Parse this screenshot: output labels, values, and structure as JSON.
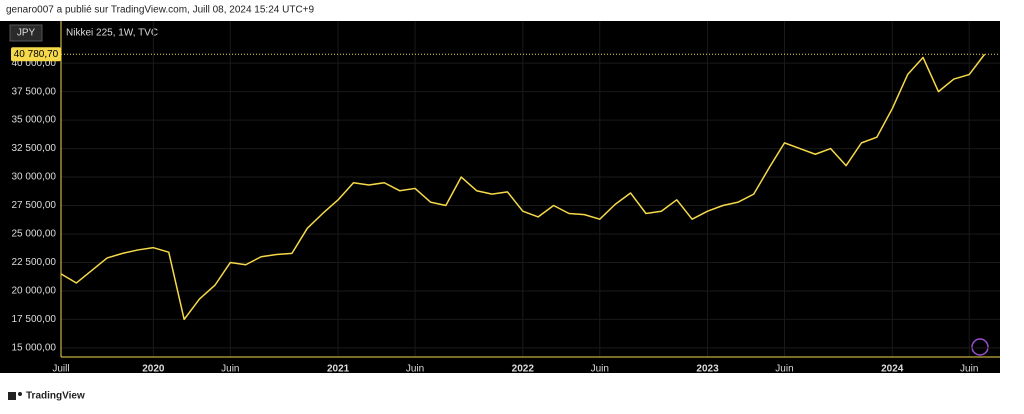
{
  "header": "genaro007 a publié sur TradingView.com, Juill 08, 2024 15:24 UTC+9",
  "footer": "TradingView",
  "chart_data": {
    "type": "line",
    "legend": "Nikkei 225, 1W, TVC",
    "currency": "JPY",
    "x": [
      "2019-07",
      "2019-08",
      "2019-09",
      "2019-10",
      "2019-11",
      "2019-12",
      "2020-01",
      "2020-02",
      "2020-03",
      "2020-04",
      "2020-05",
      "2020-06",
      "2020-07",
      "2020-08",
      "2020-09",
      "2020-10",
      "2020-11",
      "2020-12",
      "2021-01",
      "2021-02",
      "2021-03",
      "2021-04",
      "2021-05",
      "2021-06",
      "2021-07",
      "2021-08",
      "2021-09",
      "2021-10",
      "2021-11",
      "2021-12",
      "2022-01",
      "2022-02",
      "2022-03",
      "2022-04",
      "2022-05",
      "2022-06",
      "2022-07",
      "2022-08",
      "2022-09",
      "2022-10",
      "2022-11",
      "2022-12",
      "2023-01",
      "2023-02",
      "2023-03",
      "2023-04",
      "2023-05",
      "2023-06",
      "2023-07",
      "2023-08",
      "2023-09",
      "2023-10",
      "2023-11",
      "2023-12",
      "2024-01",
      "2024-02",
      "2024-03",
      "2024-04",
      "2024-05",
      "2024-06",
      "2024-07"
    ],
    "series": [
      {
        "name": "Nikkei 225",
        "color": "#f5d94a",
        "values": [
          21500,
          20700,
          21800,
          22900,
          23300,
          23600,
          23800,
          23400,
          17500,
          19300,
          20500,
          22500,
          22300,
          23000,
          23200,
          23300,
          25500,
          26800,
          28000,
          29500,
          29300,
          29500,
          28800,
          29000,
          27800,
          27500,
          30000,
          28800,
          28500,
          28700,
          27000,
          26500,
          27500,
          26800,
          26700,
          26300,
          27600,
          28600,
          26800,
          27000,
          28000,
          26300,
          27000,
          27500,
          27800,
          28500,
          30800,
          33000,
          32500,
          32000,
          32500,
          31000,
          33000,
          33500,
          36000,
          39000,
          40500,
          37500,
          38600,
          39000,
          40780.7
        ],
        "last_value_label": "40 780,70"
      }
    ],
    "xlim": [
      "2019-07",
      "2024-08"
    ],
    "xticks": [
      {
        "value": "2019-07",
        "label": "Juill"
      },
      {
        "value": "2020-01",
        "label": "2020"
      },
      {
        "value": "2020-06",
        "label": "Juin"
      },
      {
        "value": "2021-01",
        "label": "2021"
      },
      {
        "value": "2021-06",
        "label": "Juin"
      },
      {
        "value": "2022-01",
        "label": "2022"
      },
      {
        "value": "2022-06",
        "label": "Juin"
      },
      {
        "value": "2023-01",
        "label": "2023"
      },
      {
        "value": "2023-06",
        "label": "Juin"
      },
      {
        "value": "2024-01",
        "label": "2024"
      },
      {
        "value": "2024-06",
        "label": "Juin"
      }
    ],
    "ylim": [
      14200,
      43700
    ],
    "yticks": [
      {
        "value": 15000,
        "label": "15 000,00"
      },
      {
        "value": 17500,
        "label": "17 500,00"
      },
      {
        "value": 20000,
        "label": "20 000,00"
      },
      {
        "value": 22500,
        "label": "22 500,00"
      },
      {
        "value": 25000,
        "label": "25 000,00"
      },
      {
        "value": 27500,
        "label": "27 500,00"
      },
      {
        "value": 30000,
        "label": "30 000,00"
      },
      {
        "value": 32500,
        "label": "32 500,00"
      },
      {
        "value": 35000,
        "label": "35 000,00"
      },
      {
        "value": 37500,
        "label": "37 500,00"
      },
      {
        "value": 40000,
        "label": "40 000,00"
      }
    ],
    "grid": true
  }
}
